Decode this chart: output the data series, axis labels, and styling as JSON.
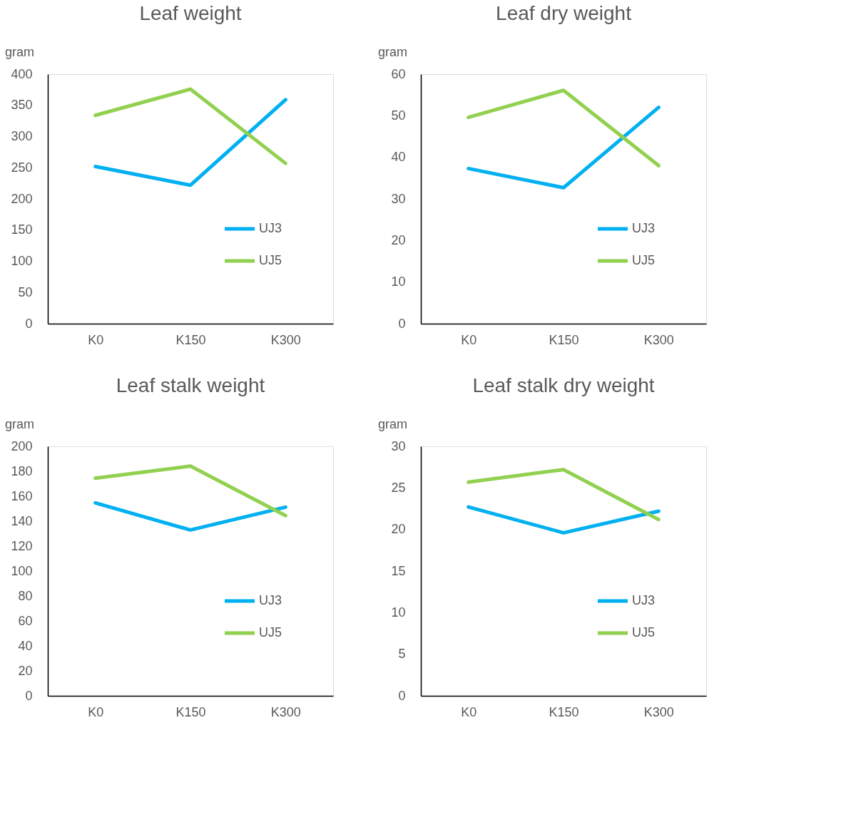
{
  "chart_data": [
    {
      "type": "line",
      "title": "Leaf weight",
      "ylabel": "gram",
      "categories": [
        "K0",
        "K150",
        "K300"
      ],
      "ylim": [
        0,
        400
      ],
      "yticks": [
        0,
        50,
        100,
        150,
        200,
        250,
        300,
        350,
        400
      ],
      "grid": false,
      "legend": "right",
      "series": [
        {
          "name": "UJ3",
          "color": "#00b0f0",
          "values": [
            252,
            222,
            359
          ]
        },
        {
          "name": "UJ5",
          "color": "#92d050",
          "values": [
            334,
            376,
            257
          ]
        }
      ]
    },
    {
      "type": "line",
      "title": "Leaf dry weight",
      "ylabel": "gram",
      "categories": [
        "K0",
        "K150",
        "K300"
      ],
      "ylim": [
        0,
        60
      ],
      "yticks": [
        0,
        10,
        20,
        30,
        40,
        50,
        60
      ],
      "grid": false,
      "legend": "right",
      "series": [
        {
          "name": "UJ3",
          "color": "#00b0f0",
          "values": [
            37.3,
            32.7,
            52.0
          ]
        },
        {
          "name": "UJ5",
          "color": "#92d050",
          "values": [
            49.6,
            56.1,
            38.0
          ]
        }
      ]
    },
    {
      "type": "line",
      "title": "Leaf stalk weight",
      "ylabel": "gram",
      "categories": [
        "K0",
        "K150",
        "K300"
      ],
      "ylim": [
        0,
        200
      ],
      "yticks": [
        0,
        20,
        40,
        60,
        80,
        100,
        120,
        140,
        160,
        180,
        200
      ],
      "grid": false,
      "legend": "right",
      "series": [
        {
          "name": "UJ3",
          "color": "#00b0f0",
          "values": [
            154.6,
            132.9,
            151.2
          ]
        },
        {
          "name": "UJ5",
          "color": "#92d050",
          "values": [
            174.4,
            184.1,
            144.4
          ]
        }
      ]
    },
    {
      "type": "line",
      "title": "Leaf stalk dry weight",
      "ylabel": "gram",
      "categories": [
        "K0",
        "K150",
        "K300"
      ],
      "ylim": [
        0,
        30
      ],
      "yticks": [
        0,
        5,
        10,
        15,
        20,
        25,
        30
      ],
      "grid": false,
      "legend": "right",
      "series": [
        {
          "name": "UJ3",
          "color": "#00b0f0",
          "values": [
            22.7,
            19.6,
            22.2
          ]
        },
        {
          "name": "UJ5",
          "color": "#92d050",
          "values": [
            25.7,
            27.2,
            21.2
          ]
        }
      ]
    }
  ]
}
